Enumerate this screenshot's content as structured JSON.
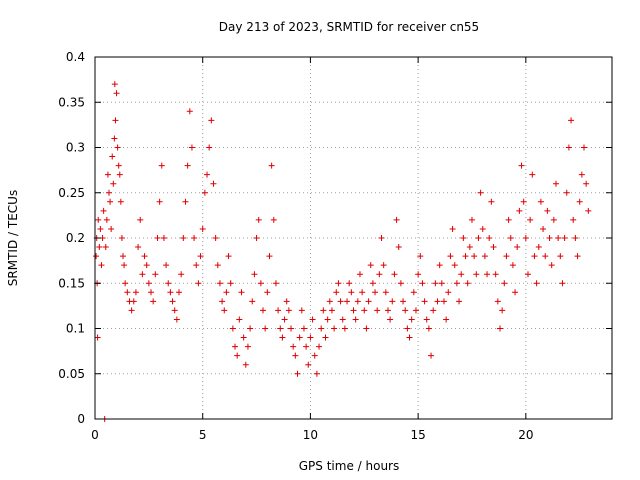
{
  "chart_data": {
    "type": "scatter",
    "title": "Day 213 of 2023, SRMTID for receiver cn55",
    "xlabel": "GPS time / hours",
    "ylabel": "SRMTID / TECUs",
    "xlim": [
      0,
      24
    ],
    "ylim": [
      0,
      0.4
    ],
    "xticks": [
      0,
      5,
      10,
      15,
      20
    ],
    "xtick_labels": [
      "0",
      "5",
      "10",
      "15",
      "20"
    ],
    "yticks": [
      0,
      0.05,
      0.1,
      0.15,
      0.2,
      0.25,
      0.3,
      0.35,
      0.4
    ],
    "ytick_labels": [
      "0",
      "0.05",
      "0.1",
      "0.15",
      "0.2",
      "0.25",
      "0.3",
      "0.35",
      "0.4"
    ],
    "grid": true,
    "marker": "+",
    "series": [
      {
        "name": "cn55",
        "color": "#e00000",
        "points": [
          [
            0.05,
            0.18
          ],
          [
            0.08,
            0.2
          ],
          [
            0.1,
            0.15
          ],
          [
            0.12,
            0.09
          ],
          [
            0.15,
            0.22
          ],
          [
            0.2,
            0.19
          ],
          [
            0.25,
            0.21
          ],
          [
            0.3,
            0.17
          ],
          [
            0.35,
            0.2
          ],
          [
            0.4,
            0.23
          ],
          [
            0.45,
            0.0
          ],
          [
            0.5,
            0.19
          ],
          [
            0.55,
            0.22
          ],
          [
            0.6,
            0.27
          ],
          [
            0.65,
            0.25
          ],
          [
            0.7,
            0.24
          ],
          [
            0.75,
            0.21
          ],
          [
            0.8,
            0.29
          ],
          [
            0.85,
            0.26
          ],
          [
            0.9,
            0.31
          ],
          [
            0.92,
            0.37
          ],
          [
            0.95,
            0.33
          ],
          [
            1.0,
            0.36
          ],
          [
            1.05,
            0.3
          ],
          [
            1.1,
            0.28
          ],
          [
            1.15,
            0.27
          ],
          [
            1.2,
            0.24
          ],
          [
            1.25,
            0.2
          ],
          [
            1.3,
            0.18
          ],
          [
            1.35,
            0.17
          ],
          [
            1.4,
            0.15
          ],
          [
            1.5,
            0.14
          ],
          [
            1.6,
            0.13
          ],
          [
            1.7,
            0.12
          ],
          [
            1.8,
            0.13
          ],
          [
            1.9,
            0.14
          ],
          [
            2.0,
            0.19
          ],
          [
            2.1,
            0.22
          ],
          [
            2.2,
            0.16
          ],
          [
            2.3,
            0.18
          ],
          [
            2.4,
            0.17
          ],
          [
            2.5,
            0.15
          ],
          [
            2.6,
            0.14
          ],
          [
            2.7,
            0.13
          ],
          [
            2.8,
            0.16
          ],
          [
            2.9,
            0.2
          ],
          [
            3.0,
            0.24
          ],
          [
            3.1,
            0.28
          ],
          [
            3.2,
            0.2
          ],
          [
            3.3,
            0.17
          ],
          [
            3.4,
            0.15
          ],
          [
            3.5,
            0.14
          ],
          [
            3.6,
            0.13
          ],
          [
            3.7,
            0.12
          ],
          [
            3.8,
            0.11
          ],
          [
            3.9,
            0.14
          ],
          [
            4.0,
            0.16
          ],
          [
            4.1,
            0.2
          ],
          [
            4.2,
            0.24
          ],
          [
            4.3,
            0.28
          ],
          [
            4.4,
            0.34
          ],
          [
            4.5,
            0.3
          ],
          [
            4.6,
            0.2
          ],
          [
            4.7,
            0.17
          ],
          [
            4.8,
            0.15
          ],
          [
            4.9,
            0.18
          ],
          [
            5.0,
            0.21
          ],
          [
            5.1,
            0.25
          ],
          [
            5.2,
            0.27
          ],
          [
            5.3,
            0.3
          ],
          [
            5.4,
            0.33
          ],
          [
            5.5,
            0.26
          ],
          [
            5.6,
            0.2
          ],
          [
            5.7,
            0.17
          ],
          [
            5.8,
            0.15
          ],
          [
            5.9,
            0.13
          ],
          [
            6.0,
            0.12
          ],
          [
            6.1,
            0.14
          ],
          [
            6.2,
            0.18
          ],
          [
            6.3,
            0.15
          ],
          [
            6.4,
            0.1
          ],
          [
            6.5,
            0.08
          ],
          [
            6.6,
            0.07
          ],
          [
            6.7,
            0.11
          ],
          [
            6.8,
            0.14
          ],
          [
            6.9,
            0.09
          ],
          [
            7.0,
            0.06
          ],
          [
            7.1,
            0.08
          ],
          [
            7.2,
            0.1
          ],
          [
            7.3,
            0.13
          ],
          [
            7.4,
            0.16
          ],
          [
            7.5,
            0.2
          ],
          [
            7.6,
            0.22
          ],
          [
            7.7,
            0.15
          ],
          [
            7.8,
            0.12
          ],
          [
            7.9,
            0.1
          ],
          [
            8.0,
            0.14
          ],
          [
            8.1,
            0.18
          ],
          [
            8.2,
            0.28
          ],
          [
            8.3,
            0.22
          ],
          [
            8.4,
            0.15
          ],
          [
            8.5,
            0.12
          ],
          [
            8.6,
            0.1
          ],
          [
            8.7,
            0.09
          ],
          [
            8.8,
            0.11
          ],
          [
            8.9,
            0.13
          ],
          [
            9.0,
            0.12
          ],
          [
            9.1,
            0.1
          ],
          [
            9.2,
            0.08
          ],
          [
            9.3,
            0.07
          ],
          [
            9.4,
            0.05
          ],
          [
            9.5,
            0.09
          ],
          [
            9.6,
            0.12
          ],
          [
            9.7,
            0.1
          ],
          [
            9.8,
            0.08
          ],
          [
            9.9,
            0.06
          ],
          [
            10.0,
            0.09
          ],
          [
            10.1,
            0.11
          ],
          [
            10.2,
            0.07
          ],
          [
            10.3,
            0.05
          ],
          [
            10.4,
            0.08
          ],
          [
            10.5,
            0.1
          ],
          [
            10.6,
            0.12
          ],
          [
            10.7,
            0.09
          ],
          [
            10.8,
            0.11
          ],
          [
            10.9,
            0.13
          ],
          [
            11.0,
            0.12
          ],
          [
            11.1,
            0.1
          ],
          [
            11.2,
            0.14
          ],
          [
            11.3,
            0.15
          ],
          [
            11.4,
            0.13
          ],
          [
            11.5,
            0.11
          ],
          [
            11.6,
            0.1
          ],
          [
            11.7,
            0.13
          ],
          [
            11.8,
            0.15
          ],
          [
            11.9,
            0.14
          ],
          [
            12.0,
            0.12
          ],
          [
            12.1,
            0.11
          ],
          [
            12.2,
            0.13
          ],
          [
            12.3,
            0.16
          ],
          [
            12.4,
            0.14
          ],
          [
            12.5,
            0.12
          ],
          [
            12.6,
            0.1
          ],
          [
            12.7,
            0.13
          ],
          [
            12.8,
            0.17
          ],
          [
            12.9,
            0.15
          ],
          [
            13.0,
            0.14
          ],
          [
            13.1,
            0.12
          ],
          [
            13.2,
            0.16
          ],
          [
            13.3,
            0.2
          ],
          [
            13.4,
            0.17
          ],
          [
            13.5,
            0.14
          ],
          [
            13.6,
            0.12
          ],
          [
            13.7,
            0.11
          ],
          [
            13.8,
            0.13
          ],
          [
            13.9,
            0.16
          ],
          [
            14.0,
            0.22
          ],
          [
            14.1,
            0.19
          ],
          [
            14.2,
            0.15
          ],
          [
            14.3,
            0.13
          ],
          [
            14.4,
            0.12
          ],
          [
            14.5,
            0.1
          ],
          [
            14.6,
            0.09
          ],
          [
            14.7,
            0.11
          ],
          [
            14.8,
            0.14
          ],
          [
            14.9,
            0.12
          ],
          [
            15.0,
            0.16
          ],
          [
            15.1,
            0.18
          ],
          [
            15.2,
            0.15
          ],
          [
            15.3,
            0.13
          ],
          [
            15.4,
            0.11
          ],
          [
            15.5,
            0.1
          ],
          [
            15.6,
            0.07
          ],
          [
            15.7,
            0.12
          ],
          [
            15.8,
            0.15
          ],
          [
            15.9,
            0.13
          ],
          [
            16.0,
            0.17
          ],
          [
            16.1,
            0.15
          ],
          [
            16.2,
            0.13
          ],
          [
            16.3,
            0.11
          ],
          [
            16.4,
            0.14
          ],
          [
            16.5,
            0.18
          ],
          [
            16.6,
            0.21
          ],
          [
            16.7,
            0.17
          ],
          [
            16.8,
            0.15
          ],
          [
            16.9,
            0.13
          ],
          [
            17.0,
            0.16
          ],
          [
            17.1,
            0.2
          ],
          [
            17.2,
            0.18
          ],
          [
            17.3,
            0.15
          ],
          [
            17.4,
            0.19
          ],
          [
            17.5,
            0.22
          ],
          [
            17.6,
            0.18
          ],
          [
            17.7,
            0.16
          ],
          [
            17.8,
            0.2
          ],
          [
            17.9,
            0.25
          ],
          [
            18.0,
            0.21
          ],
          [
            18.1,
            0.18
          ],
          [
            18.2,
            0.16
          ],
          [
            18.3,
            0.2
          ],
          [
            18.4,
            0.24
          ],
          [
            18.5,
            0.19
          ],
          [
            18.6,
            0.16
          ],
          [
            18.7,
            0.13
          ],
          [
            18.8,
            0.1
          ],
          [
            18.9,
            0.12
          ],
          [
            19.0,
            0.15
          ],
          [
            19.1,
            0.18
          ],
          [
            19.2,
            0.22
          ],
          [
            19.3,
            0.2
          ],
          [
            19.4,
            0.17
          ],
          [
            19.5,
            0.14
          ],
          [
            19.6,
            0.19
          ],
          [
            19.7,
            0.23
          ],
          [
            19.8,
            0.28
          ],
          [
            19.9,
            0.24
          ],
          [
            20.0,
            0.2
          ],
          [
            20.1,
            0.16
          ],
          [
            20.2,
            0.22
          ],
          [
            20.3,
            0.27
          ],
          [
            20.4,
            0.18
          ],
          [
            20.5,
            0.15
          ],
          [
            20.6,
            0.19
          ],
          [
            20.7,
            0.24
          ],
          [
            20.8,
            0.21
          ],
          [
            20.9,
            0.18
          ],
          [
            21.0,
            0.23
          ],
          [
            21.1,
            0.2
          ],
          [
            21.2,
            0.17
          ],
          [
            21.3,
            0.22
          ],
          [
            21.4,
            0.26
          ],
          [
            21.5,
            0.2
          ],
          [
            21.6,
            0.18
          ],
          [
            21.7,
            0.15
          ],
          [
            21.8,
            0.2
          ],
          [
            21.9,
            0.25
          ],
          [
            22.0,
            0.3
          ],
          [
            22.1,
            0.33
          ],
          [
            22.2,
            0.22
          ],
          [
            22.3,
            0.2
          ],
          [
            22.4,
            0.18
          ],
          [
            22.5,
            0.24
          ],
          [
            22.6,
            0.27
          ],
          [
            22.7,
            0.3
          ],
          [
            22.8,
            0.26
          ],
          [
            22.9,
            0.23
          ]
        ]
      }
    ]
  }
}
